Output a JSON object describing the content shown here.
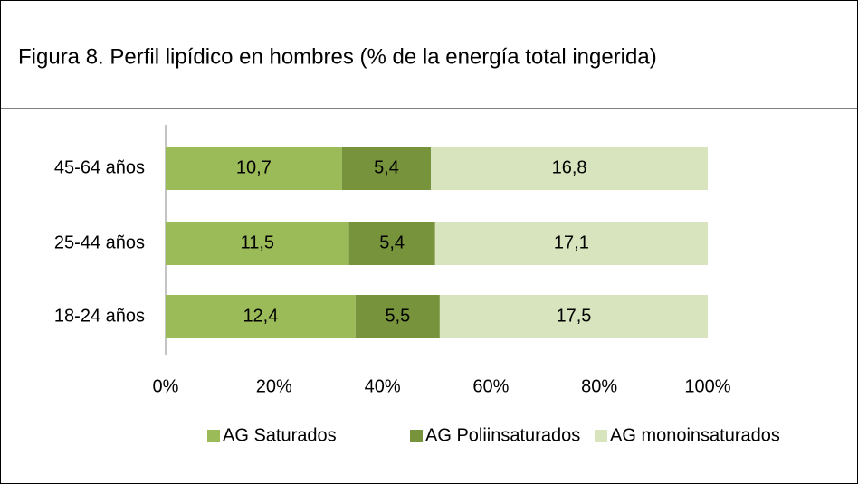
{
  "chart_data": {
    "type": "bar",
    "orientation": "horizontal",
    "stack": "percent",
    "title": "Figura 8. Perfil lipídico en hombres (% de la energía total ingerida)",
    "categories": [
      "45-64 años",
      "25-44 años",
      "18-24 años"
    ],
    "series": [
      {
        "name": "AG Saturados",
        "color": "#9bbb59",
        "values": [
          10.7,
          11.5,
          12.4
        ],
        "value_labels": [
          "10,7",
          "11,5",
          "12,4"
        ]
      },
      {
        "name": "AG Poliinsaturados",
        "color": "#77933c",
        "values": [
          5.4,
          5.4,
          5.5
        ],
        "value_labels": [
          "5,4",
          "5,4",
          "5,5"
        ]
      },
      {
        "name": "AG monoinsaturados",
        "color": "#d7e4bd",
        "values": [
          16.8,
          17.1,
          17.5
        ],
        "value_labels": [
          "16,8",
          "17,1",
          "17,5"
        ]
      }
    ],
    "xlim": [
      0,
      100
    ],
    "xticks": [
      {
        "value": 0,
        "label": "0%"
      },
      {
        "value": 20,
        "label": "20%"
      },
      {
        "value": 40,
        "label": "40%"
      },
      {
        "value": 60,
        "label": "60%"
      },
      {
        "value": 80,
        "label": "80%"
      },
      {
        "value": 100,
        "label": "100%"
      }
    ],
    "grid": false,
    "legend": "bottom"
  }
}
